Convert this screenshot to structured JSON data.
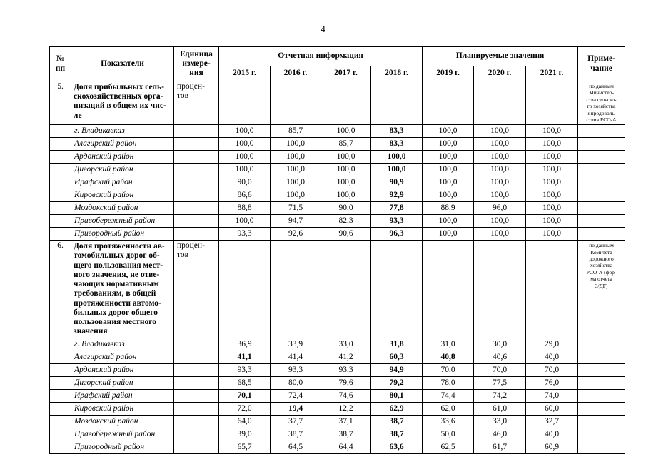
{
  "page": {
    "number": "4"
  },
  "table": {
    "headers": {
      "num": "№\nпп",
      "indicator": "Показатели",
      "unit": "Единица\nизмере-\nния",
      "report_group": "Отчетная информация",
      "plan_group": "Планируемые значения",
      "note": "Приме-\nчание",
      "years": [
        "2015 г.",
        "2016 г.",
        "2017 г.",
        "2018 г.",
        "2019 г.",
        "2020 г.",
        "2021 г."
      ]
    },
    "sections": [
      {
        "num": "5.",
        "indicator": "Доля прибыльных сель-\nскохозяйственных орга-\nнизаций в  общем их чис-\nле",
        "unit": "процен-\nтов",
        "note": "по данным\nМинистер-\nства сельско-\nго хозяйства\nи продоволь-\nствия РСО-А",
        "rows": [
          {
            "name": "г. Владикавказ",
            "values": [
              "100,0",
              "85,7",
              "100,0",
              "83,3",
              "100,0",
              "100,0",
              "100,0"
            ],
            "bold_cols": [
              3
            ]
          },
          {
            "name": "Алагирский район",
            "values": [
              "100,0",
              "100,0",
              "85,7",
              "83,3",
              "100,0",
              "100,0",
              "100,0"
            ],
            "bold_cols": [
              3
            ]
          },
          {
            "name": "Ардонский район",
            "values": [
              "100,0",
              "100,0",
              "100,0",
              "100,0",
              "100,0",
              "100,0",
              "100,0"
            ],
            "bold_cols": [
              3
            ]
          },
          {
            "name": "Дигорский район",
            "values": [
              "100,0",
              "100,0",
              "100,0",
              "100,0",
              "100,0",
              "100,0",
              "100,0"
            ],
            "bold_cols": [
              3
            ]
          },
          {
            "name": "Ирафский район",
            "values": [
              "90,0",
              "100,0",
              "100,0",
              "90,9",
              "100,0",
              "100,0",
              "100,0"
            ],
            "bold_cols": [
              3
            ]
          },
          {
            "name": "Кировский район",
            "values": [
              "86,6",
              "100,0",
              "100,0",
              "92,9",
              "100,0",
              "100,0",
              "100,0"
            ],
            "bold_cols": [
              3
            ]
          },
          {
            "name": "Моздокский район",
            "values": [
              "88,8",
              "71,5",
              "90,0",
              "77,8",
              "88,9",
              "96,0",
              "100,0"
            ],
            "bold_cols": [
              3
            ]
          },
          {
            "name": "Правобережный район",
            "values": [
              "100,0",
              "94,7",
              "82,3",
              "93,3",
              "100,0",
              "100,0",
              "100,0"
            ],
            "bold_cols": [
              3
            ]
          },
          {
            "name": "Пригородный район",
            "values": [
              "93,3",
              "92,6",
              "90,6",
              "96,3",
              "100,0",
              "100,0",
              "100,0"
            ],
            "bold_cols": [
              3
            ]
          }
        ]
      },
      {
        "num": "6.",
        "indicator": "Доля протяженности ав-\nтомобильных дорог об-\nщего пользования мест-\nного   значения, не отве-\nчающих   нормативным\nтребованиям, в общей\nпротяженности автомо-\nбильных дорог   общего\nпользования местного\nзначения",
        "unit": "процен-\nтов",
        "note": "по данным\nКомитета\nдорожного\nхозяйства\nРСО-А (фор-\nма отчета\n3/ДГ)",
        "rows": [
          {
            "name": "г. Владикавказ",
            "values": [
              "36,9",
              "33,9",
              "33,0",
              "31,8",
              "31,0",
              "30,0",
              "29,0"
            ],
            "bold_cols": [
              3
            ]
          },
          {
            "name": "Алагирский район",
            "values": [
              "41,1",
              "41,4",
              "41,2",
              "60,3",
              "40,8",
              "40,6",
              "40,0"
            ],
            "bold_cols": [
              0,
              3,
              4
            ]
          },
          {
            "name": "Ардонский район",
            "values": [
              "93,3",
              "93,3",
              "93,3",
              "94,9",
              "70,0",
              "70,0",
              "70,0"
            ],
            "bold_cols": [
              3
            ]
          },
          {
            "name": "Дигорский район",
            "values": [
              "68,5",
              "80,0",
              "79,6",
              "79,2",
              "78,0",
              "77,5",
              "76,0"
            ],
            "bold_cols": [
              3
            ]
          },
          {
            "name": "Ирафский район",
            "values": [
              "70,1",
              "72,4",
              "74,6",
              "80,1",
              "74,4",
              "74,2",
              "74,0"
            ],
            "bold_cols": [
              0,
              3
            ]
          },
          {
            "name": "Кировский район",
            "values": [
              "72,0",
              "19,4",
              "12,2",
              "62,9",
              "62,0",
              "61,0",
              "60,0"
            ],
            "bold_cols": [
              1,
              3
            ]
          },
          {
            "name": "Моздокский район",
            "values": [
              "64,0",
              "37,7",
              "37,1",
              "38,7",
              "33,6",
              "33,0",
              "32,7"
            ],
            "bold_cols": [
              3
            ]
          },
          {
            "name": "Правобережный район",
            "values": [
              "39,0",
              "38,7",
              "38,7",
              "38,7",
              "50,0",
              "46,0",
              "40,0"
            ],
            "bold_cols": [
              3
            ]
          },
          {
            "name": "Пригородный район",
            "values": [
              "65,7",
              "64,5",
              "64,4",
              "63,6",
              "62,5",
              "61,7",
              "60,9"
            ],
            "bold_cols": [
              3
            ]
          }
        ]
      }
    ]
  }
}
